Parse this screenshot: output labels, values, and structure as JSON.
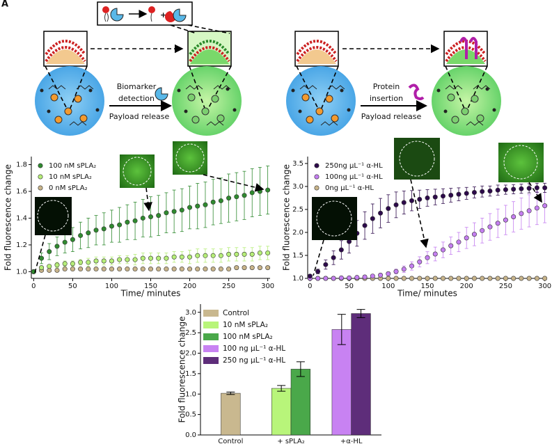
{
  "panel_label": "A",
  "diagram": {
    "left": {
      "arrow_label_top": [
        "Biomarker",
        "detection"
      ],
      "arrow_label_bottom": "Payload release"
    },
    "right": {
      "arrow_label_top": [
        "Protein",
        "insertion"
      ],
      "arrow_label_bottom": "Payload release"
    }
  },
  "chart_data": [
    {
      "type": "scatter",
      "xlabel": "Time/ minutes",
      "ylabel": "Fold fluorescence change",
      "xlim": [
        -3,
        303
      ],
      "xticks": [
        0,
        50,
        100,
        150,
        200,
        250,
        300
      ],
      "ylim": [
        0.95,
        1.86
      ],
      "yticks": [
        {
          "value": 1,
          "label": "1.0"
        },
        {
          "value": 1.2,
          "label": "1.2"
        },
        {
          "value": 1.4,
          "label": "1.4"
        },
        {
          "value": 1.6,
          "label": "1.6"
        },
        {
          "value": 1.8,
          "label": "1.8"
        }
      ],
      "legend": "upper left",
      "x": [
        0,
        10,
        20,
        30,
        40,
        50,
        60,
        70,
        80,
        90,
        100,
        110,
        120,
        130,
        140,
        150,
        160,
        170,
        180,
        190,
        200,
        210,
        220,
        230,
        240,
        250,
        260,
        270,
        280,
        290,
        300
      ],
      "series": [
        {
          "name": "100 nM sPLA₂",
          "color": "#2f8a2f",
          "values": [
            1.0,
            1.1,
            1.15,
            1.19,
            1.22,
            1.24,
            1.27,
            1.29,
            1.31,
            1.32,
            1.34,
            1.35,
            1.37,
            1.38,
            1.4,
            1.41,
            1.42,
            1.44,
            1.45,
            1.46,
            1.48,
            1.49,
            1.5,
            1.52,
            1.53,
            1.55,
            1.56,
            1.57,
            1.59,
            1.6,
            1.61
          ],
          "errors": [
            0,
            0.04,
            0.06,
            0.07,
            0.08,
            0.09,
            0.1,
            0.11,
            0.11,
            0.12,
            0.12,
            0.13,
            0.13,
            0.14,
            0.14,
            0.15,
            0.15,
            0.15,
            0.16,
            0.16,
            0.16,
            0.17,
            0.17,
            0.17,
            0.17,
            0.18,
            0.18,
            0.18,
            0.18,
            0.18,
            0.18
          ]
        },
        {
          "name": "10 nM sPLA₂",
          "color": "#b6ee78",
          "values": [
            1.0,
            1.03,
            1.04,
            1.05,
            1.06,
            1.06,
            1.07,
            1.07,
            1.08,
            1.08,
            1.08,
            1.09,
            1.09,
            1.09,
            1.1,
            1.1,
            1.1,
            1.1,
            1.11,
            1.11,
            1.11,
            1.12,
            1.12,
            1.12,
            1.12,
            1.13,
            1.13,
            1.13,
            1.13,
            1.14,
            1.14
          ],
          "errors": [
            0,
            0.01,
            0.01,
            0.02,
            0.02,
            0.02,
            0.02,
            0.03,
            0.03,
            0.03,
            0.03,
            0.03,
            0.03,
            0.04,
            0.04,
            0.04,
            0.04,
            0.04,
            0.04,
            0.04,
            0.05,
            0.05,
            0.05,
            0.05,
            0.05,
            0.05,
            0.05,
            0.05,
            0.05,
            0.05,
            0.05
          ]
        },
        {
          "name": "0 nM sPLA₂",
          "color": "#c8b48a",
          "values": [
            1.0,
            1.01,
            1.01,
            1.01,
            1.02,
            1.02,
            1.02,
            1.02,
            1.02,
            1.02,
            1.02,
            1.02,
            1.02,
            1.02,
            1.02,
            1.02,
            1.02,
            1.02,
            1.02,
            1.02,
            1.02,
            1.02,
            1.02,
            1.02,
            1.02,
            1.02,
            1.03,
            1.03,
            1.03,
            1.03,
            1.03
          ],
          "errors": [
            0,
            0.01,
            0.01,
            0.01,
            0.01,
            0.01,
            0.01,
            0.01,
            0.01,
            0.01,
            0.01,
            0.01,
            0.01,
            0.01,
            0.01,
            0.01,
            0.01,
            0.01,
            0.01,
            0.01,
            0.01,
            0.01,
            0.01,
            0.01,
            0.01,
            0.01,
            0.01,
            0.01,
            0.01,
            0.01,
            0.01
          ]
        }
      ]
    },
    {
      "type": "scatter",
      "xlabel": "Time/ minutes",
      "ylabel": "Fold fluorescence change",
      "xlim": [
        -3,
        303
      ],
      "xticks": [
        0,
        50,
        100,
        150,
        200,
        250,
        300
      ],
      "ylim": [
        1.0,
        3.65
      ],
      "yticks": [
        {
          "value": 1,
          "label": "1.0"
        },
        1.5,
        {
          "value": 2,
          "label": "2.0"
        },
        2.5,
        {
          "value": 3,
          "label": "3.0"
        },
        3.5
      ],
      "legend": "upper left",
      "x": [
        0,
        10,
        20,
        30,
        40,
        50,
        60,
        70,
        80,
        90,
        100,
        110,
        120,
        130,
        140,
        150,
        160,
        170,
        180,
        190,
        200,
        210,
        220,
        230,
        240,
        250,
        260,
        270,
        280,
        290,
        300
      ],
      "series": [
        {
          "name": "250ng µL⁻¹ α-HL",
          "color": "#2d0a4b",
          "values": [
            1.05,
            1.15,
            1.3,
            1.45,
            1.62,
            1.8,
            1.98,
            2.15,
            2.3,
            2.42,
            2.52,
            2.6,
            2.65,
            2.69,
            2.72,
            2.75,
            2.77,
            2.79,
            2.81,
            2.83,
            2.85,
            2.87,
            2.89,
            2.9,
            2.92,
            2.93,
            2.94,
            2.95,
            2.96,
            2.97,
            2.97
          ],
          "errors": [
            0,
            0.05,
            0.1,
            0.15,
            0.2,
            0.25,
            0.28,
            0.3,
            0.32,
            0.32,
            0.3,
            0.28,
            0.25,
            0.22,
            0.2,
            0.18,
            0.17,
            0.16,
            0.15,
            0.14,
            0.13,
            0.12,
            0.12,
            0.11,
            0.11,
            0.1,
            0.1,
            0.1,
            0.1,
            0.1,
            0.1
          ]
        },
        {
          "name": "100ng µL⁻¹ α-HL",
          "color": "#c47ef0",
          "values": [
            1.0,
            1.0,
            1.0,
            1.0,
            1.01,
            1.01,
            1.02,
            1.03,
            1.05,
            1.07,
            1.1,
            1.15,
            1.2,
            1.27,
            1.36,
            1.45,
            1.53,
            1.62,
            1.71,
            1.79,
            1.88,
            1.96,
            2.04,
            2.12,
            2.2,
            2.27,
            2.34,
            2.41,
            2.47,
            2.53,
            2.58
          ],
          "errors": [
            0,
            0,
            0,
            0,
            0.01,
            0.01,
            0.01,
            0.02,
            0.02,
            0.03,
            0.04,
            0.05,
            0.07,
            0.09,
            0.11,
            0.13,
            0.15,
            0.17,
            0.19,
            0.21,
            0.23,
            0.25,
            0.27,
            0.29,
            0.31,
            0.32,
            0.33,
            0.34,
            0.35,
            0.36,
            0.37
          ]
        },
        {
          "name": "0ng µL⁻¹ α-HL",
          "color": "#c8b48a",
          "values": [
            1.0,
            1.0,
            1.0,
            1.0,
            1.0,
            1.0,
            1.0,
            1.0,
            1.0,
            1.0,
            1.0,
            1.0,
            1.0,
            1.0,
            1.0,
            1.0,
            1.0,
            1.0,
            1.0,
            1.0,
            1.0,
            1.0,
            1.0,
            1.0,
            1.0,
            1.0,
            1.0,
            1.0,
            1.0,
            1.0,
            1.0
          ],
          "errors": [
            0.01,
            0.01,
            0.01,
            0.01,
            0.01,
            0.01,
            0.01,
            0.01,
            0.01,
            0.01,
            0.01,
            0.01,
            0.01,
            0.01,
            0.01,
            0.01,
            0.01,
            0.01,
            0.01,
            0.01,
            0.01,
            0.01,
            0.01,
            0.01,
            0.01,
            0.01,
            0.01,
            0.01,
            0.01,
            0.01,
            0.01
          ]
        }
      ]
    },
    {
      "type": "bar",
      "ylabel": "Fold fluorescence change",
      "categories": [
        "Control",
        "+ sPLA₂",
        "+α-HL"
      ],
      "ylim": [
        0,
        3.2
      ],
      "yticks": [
        {
          "value": 0,
          "label": "0.0"
        },
        0.5,
        {
          "value": 1,
          "label": "1.0"
        },
        1.5,
        {
          "value": 2,
          "label": "2.0"
        },
        2.5,
        {
          "value": 3,
          "label": "3.0"
        }
      ],
      "legend": "upper left",
      "series": [
        {
          "name": "Control",
          "color": "#c9b88f",
          "values": [
            1.02,
            null,
            null
          ],
          "errors": [
            0.03,
            null,
            null
          ]
        },
        {
          "name": "10 nM sPLA₂",
          "color": "#b8f57a",
          "values": [
            null,
            1.14,
            null
          ],
          "errors": [
            null,
            0.07,
            null
          ]
        },
        {
          "name": "100 nM sPLA₂",
          "color": "#4aa84a",
          "values": [
            null,
            1.61,
            null
          ],
          "errors": [
            null,
            0.18,
            null
          ]
        },
        {
          "name": "100 ng µL⁻¹ α-HL",
          "color": "#c882f2",
          "values": [
            null,
            null,
            2.58
          ],
          "errors": [
            null,
            null,
            0.37
          ]
        },
        {
          "name": "250 ng µL⁻¹ α-HL",
          "color": "#5e2d7a",
          "values": [
            null,
            null,
            2.97
          ],
          "errors": [
            null,
            null,
            0.1
          ]
        }
      ]
    }
  ]
}
